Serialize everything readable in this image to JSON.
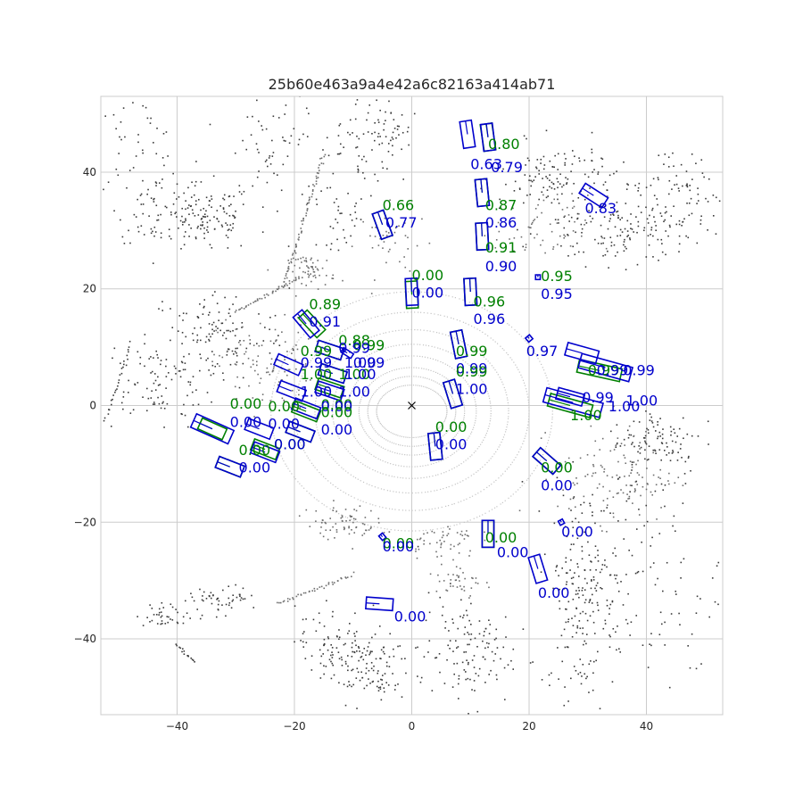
{
  "chart_data": {
    "type": "scatter",
    "title": "25b60e463a9a4e42a6c82163a414ab71",
    "xlabel": "",
    "ylabel": "",
    "xlim": [
      -53,
      53
    ],
    "ylim": [
      -53,
      53
    ],
    "x_ticks": [
      -40,
      -20,
      0,
      20,
      40
    ],
    "y_ticks": [
      -40,
      -20,
      0,
      20,
      40
    ],
    "grid": true,
    "legend": "none",
    "colors": {
      "points_dark": "#3a3a3a",
      "points_light": "#c4c4c4",
      "ground_truth": "#008000",
      "prediction": "#0000cc",
      "grid": "#cccccc",
      "ego": "#000000"
    },
    "ego": {
      "x": 0,
      "y": 0,
      "marker": "x"
    },
    "ground_truth_boxes": [
      {
        "x": -17,
        "y": 14,
        "w": 2,
        "l": 4.6,
        "yaw": 0.75,
        "score": "0.89"
      },
      {
        "x": -5,
        "y": 31,
        "w": 2,
        "l": 4.6,
        "yaw": 0.35,
        "score": "0.66"
      },
      {
        "x": 13,
        "y": 46,
        "w": 2,
        "l": 4.6,
        "yaw": 0.15,
        "score": "0.80"
      },
      {
        "x": 12,
        "y": 36.5,
        "w": 2,
        "l": 4.6,
        "yaw": 0.1,
        "score": "0.87"
      },
      {
        "x": 12,
        "y": 29,
        "w": 2,
        "l": 4.6,
        "yaw": 0.05,
        "score": "0.91"
      },
      {
        "x": 0,
        "y": 19,
        "w": 2,
        "l": 4.6,
        "yaw": 0.05,
        "score": "0.00"
      },
      {
        "x": 10,
        "y": 19.5,
        "w": 2,
        "l": 4.6,
        "yaw": 0.05,
        "score": "0.96"
      },
      {
        "x": 8,
        "y": 10.5,
        "w": 2,
        "l": 4.6,
        "yaw": 0.2,
        "score": "0.99"
      },
      {
        "x": 7,
        "y": 2,
        "w": 2,
        "l": 4.6,
        "yaw": 0.3,
        "score": "0.99"
      },
      {
        "x": -14,
        "y": 9.5,
        "w": 2,
        "l": 4.6,
        "yaw": 1.25,
        "score": "0.88"
      },
      {
        "x": -13.5,
        "y": 5.5,
        "w": 2,
        "l": 4.6,
        "yaw": 1.25,
        "score": "0.99"
      },
      {
        "x": -14,
        "y": 3,
        "w": 2,
        "l": 4.6,
        "yaw": 1.25,
        "score": "1.00"
      },
      {
        "x": -18,
        "y": -1,
        "w": 2,
        "l": 4.6,
        "yaw": 1.2,
        "score": "0.00"
      },
      {
        "x": -19,
        "y": -4.5,
        "w": 2,
        "l": 4.6,
        "yaw": 1.2,
        "score": "0.00"
      },
      {
        "x": -25,
        "y": -7.5,
        "w": 2,
        "l": 4.6,
        "yaw": 1.2,
        "score": "0.00"
      },
      {
        "x": -34,
        "y": -4,
        "w": 2,
        "l": 4.6,
        "yaw": 1.15,
        "score": "0.00"
      },
      {
        "x": -31,
        "y": -10.5,
        "w": 2,
        "l": 4.6,
        "yaw": 1.2,
        "score": "0.00"
      },
      {
        "x": 4,
        "y": -7,
        "w": 2,
        "l": 4.6,
        "yaw": 0.1,
        "score": "0.00"
      },
      {
        "x": 23,
        "y": -9.5,
        "w": 2,
        "l": 4.6,
        "yaw": 0.85,
        "score": "0.00"
      },
      {
        "x": 13,
        "y": -22,
        "w": 2,
        "l": 4.6,
        "yaw": 0.0,
        "score": "0.00"
      },
      {
        "x": 32,
        "y": 6,
        "w": 2.2,
        "l": 7.5,
        "yaw": 1.35,
        "score": "0.99"
      },
      {
        "x": 27,
        "y": 0,
        "w": 2.2,
        "l": 7.5,
        "yaw": 1.3,
        "score": "1.00"
      }
    ],
    "prediction_boxes": [
      {
        "x": -18,
        "y": 14,
        "w": 2,
        "l": 4.6,
        "yaw": 0.7,
        "score": "0.91"
      },
      {
        "x": -5,
        "y": 31,
        "w": 2,
        "l": 4.6,
        "yaw": 0.35,
        "score": "0.77"
      },
      {
        "x": 9.5,
        "y": 46.5,
        "w": 2,
        "l": 4.6,
        "yaw": 0.15,
        "score": "0.63"
      },
      {
        "x": 13,
        "y": 46,
        "w": 2,
        "l": 4.6,
        "yaw": 0.12,
        "score": "0.79"
      },
      {
        "x": 31,
        "y": 36,
        "w": 2,
        "l": 4.6,
        "yaw": 1.0,
        "score": "0.83"
      },
      {
        "x": 12,
        "y": 36.5,
        "w": 2,
        "l": 4.6,
        "yaw": 0.1,
        "score": "0.86"
      },
      {
        "x": 12,
        "y": 29,
        "w": 2,
        "l": 4.6,
        "yaw": 0.05,
        "score": "0.90"
      },
      {
        "x": 21.5,
        "y": 22,
        "w": 0.8,
        "l": 0.8,
        "yaw": 0.0,
        "score": "0.95"
      },
      {
        "x": 0,
        "y": 19.5,
        "w": 2,
        "l": 4.6,
        "yaw": 0.05,
        "score": "0.00"
      },
      {
        "x": 10,
        "y": 19.5,
        "w": 2,
        "l": 4.6,
        "yaw": 0.05,
        "score": "0.96"
      },
      {
        "x": 20,
        "y": 11.5,
        "w": 0.9,
        "l": 0.9,
        "yaw": 0.7,
        "score": "0.97"
      },
      {
        "x": 8,
        "y": 10.5,
        "w": 2,
        "l": 4.6,
        "yaw": 0.2,
        "score": "0.99"
      },
      {
        "x": 7,
        "y": 2,
        "w": 2,
        "l": 4.6,
        "yaw": 0.3,
        "score": "1.00"
      },
      {
        "x": -11,
        "y": 9,
        "w": 0.9,
        "l": 2,
        "yaw": 1.0,
        "score": "0.99"
      },
      {
        "x": -14,
        "y": 9.5,
        "w": 2,
        "l": 4.6,
        "yaw": 1.25,
        "score": "0.99"
      },
      {
        "x": -21,
        "y": 7,
        "w": 2,
        "l": 4.6,
        "yaw": 1.15,
        "score": "0.99"
      },
      {
        "x": -13.5,
        "y": 5.5,
        "w": 2,
        "l": 4.6,
        "yaw": 1.25,
        "score": "1.00"
      },
      {
        "x": -20.5,
        "y": 2.5,
        "w": 2,
        "l": 4.6,
        "yaw": 1.2,
        "score": "1.00"
      },
      {
        "x": -14,
        "y": 2.5,
        "w": 2,
        "l": 4.6,
        "yaw": 1.25,
        "score": "1.00"
      },
      {
        "x": -18,
        "y": -0.5,
        "w": 2,
        "l": 4.6,
        "yaw": 1.2,
        "score": "0.00"
      },
      {
        "x": -19,
        "y": -4.5,
        "w": 2,
        "l": 4.6,
        "yaw": 1.2,
        "score": "0.00"
      },
      {
        "x": -26,
        "y": -4,
        "w": 2,
        "l": 4.6,
        "yaw": 1.2,
        "score": "0.00"
      },
      {
        "x": -25,
        "y": -8,
        "w": 2,
        "l": 4.6,
        "yaw": 1.2,
        "score": "0.00"
      },
      {
        "x": -34,
        "y": -4,
        "w": 2.5,
        "l": 7,
        "yaw": 1.15,
        "score": "0.00"
      },
      {
        "x": -31,
        "y": -10.5,
        "w": 2,
        "l": 4.6,
        "yaw": 1.2,
        "score": "0.00"
      },
      {
        "x": 4,
        "y": -7,
        "w": 2,
        "l": 4.6,
        "yaw": 0.1,
        "score": "0.00"
      },
      {
        "x": 23,
        "y": -9.5,
        "w": 2,
        "l": 4.6,
        "yaw": 0.85,
        "score": "0.00"
      },
      {
        "x": 25.5,
        "y": -20,
        "w": 0.8,
        "l": 0.8,
        "yaw": 0.5,
        "score": "0.00"
      },
      {
        "x": 13,
        "y": -22,
        "w": 2,
        "l": 4.6,
        "yaw": 0.0,
        "score": "0.00"
      },
      {
        "x": -5,
        "y": -22.5,
        "w": 0.8,
        "l": 1,
        "yaw": 0.7,
        "score": "0.00"
      },
      {
        "x": 21.5,
        "y": -28,
        "w": 2,
        "l": 4.6,
        "yaw": 0.3,
        "score": "0.00"
      },
      {
        "x": -5.5,
        "y": -34,
        "w": 2,
        "l": 4.6,
        "yaw": 1.5,
        "score": "0.00"
      },
      {
        "x": 29,
        "y": 9,
        "w": 2.2,
        "l": 5.5,
        "yaw": 1.3,
        "score": "0.99"
      },
      {
        "x": 33,
        "y": 6.5,
        "w": 2.5,
        "l": 9,
        "yaw": 1.3,
        "score": "0.99"
      },
      {
        "x": 27,
        "y": 1.5,
        "w": 2,
        "l": 4.6,
        "yaw": 1.3,
        "score": "0.99"
      },
      {
        "x": 27.5,
        "y": 0.5,
        "w": 2.5,
        "l": 10,
        "yaw": 1.3,
        "score": "1.00"
      }
    ],
    "score_labels": [
      {
        "x": -17.5,
        "y": 16.5,
        "text": "0.89",
        "kind": "gt"
      },
      {
        "x": -17.5,
        "y": 13.5,
        "text": "0.91",
        "kind": "pred"
      },
      {
        "x": -5,
        "y": 33.5,
        "text": "0.66",
        "kind": "gt"
      },
      {
        "x": -4.5,
        "y": 30.5,
        "text": "0.77",
        "kind": "pred"
      },
      {
        "x": 13,
        "y": 44,
        "text": "0.80",
        "kind": "gt"
      },
      {
        "x": 10,
        "y": 40.5,
        "text": "0.63",
        "kind": "pred"
      },
      {
        "x": 13.5,
        "y": 40,
        "text": "0.79",
        "kind": "pred"
      },
      {
        "x": 29.5,
        "y": 33,
        "text": "0.83",
        "kind": "pred"
      },
      {
        "x": 12.5,
        "y": 33.5,
        "text": "0.87",
        "kind": "gt"
      },
      {
        "x": 12.5,
        "y": 30.5,
        "text": "0.86",
        "kind": "pred"
      },
      {
        "x": 12.5,
        "y": 26.2,
        "text": "0.91",
        "kind": "gt"
      },
      {
        "x": 12.5,
        "y": 23,
        "text": "0.90",
        "kind": "pred"
      },
      {
        "x": 22,
        "y": 21.3,
        "text": "0.95",
        "kind": "gt"
      },
      {
        "x": 22,
        "y": 18.3,
        "text": "0.95",
        "kind": "pred"
      },
      {
        "x": 0,
        "y": 21.5,
        "text": "0.00",
        "kind": "gt"
      },
      {
        "x": 0,
        "y": 18.5,
        "text": "0.00",
        "kind": "pred"
      },
      {
        "x": 10.5,
        "y": 17,
        "text": "0.96",
        "kind": "gt"
      },
      {
        "x": 10.5,
        "y": 14,
        "text": "0.96",
        "kind": "pred"
      },
      {
        "x": 19.5,
        "y": 8.5,
        "text": "0.97",
        "kind": "pred"
      },
      {
        "x": 7.5,
        "y": 8.5,
        "text": "0.99",
        "kind": "gt"
      },
      {
        "x": 7.5,
        "y": 5.5,
        "text": "0.99",
        "kind": "pred"
      },
      {
        "x": 7.5,
        "y": 5,
        "text": "0.99",
        "kind": "gt"
      },
      {
        "x": 7.5,
        "y": 2,
        "text": "1.00",
        "kind": "pred"
      },
      {
        "x": -12.5,
        "y": 10.3,
        "text": "0.88",
        "kind": "gt"
      },
      {
        "x": -10,
        "y": 9.5,
        "text": "0.99",
        "kind": "gt"
      },
      {
        "x": -12.5,
        "y": 9,
        "text": "0.99",
        "kind": "pred"
      },
      {
        "x": -19,
        "y": 8.5,
        "text": "0.99",
        "kind": "gt"
      },
      {
        "x": -11.5,
        "y": 6.5,
        "text": "1.00",
        "kind": "pred"
      },
      {
        "x": -10,
        "y": 6.5,
        "text": "0.99",
        "kind": "pred"
      },
      {
        "x": -19,
        "y": 6.5,
        "text": "0.99",
        "kind": "pred"
      },
      {
        "x": -19,
        "y": 4.5,
        "text": "1.00",
        "kind": "gt"
      },
      {
        "x": -12.5,
        "y": 4.5,
        "text": "1.00",
        "kind": "gt"
      },
      {
        "x": -11.5,
        "y": 4.5,
        "text": "1.00",
        "kind": "pred"
      },
      {
        "x": -19,
        "y": 1.5,
        "text": "1.00",
        "kind": "pred"
      },
      {
        "x": -12.5,
        "y": 1.5,
        "text": "1.00",
        "kind": "pred"
      },
      {
        "x": -31,
        "y": -0.5,
        "text": "0.00",
        "kind": "gt"
      },
      {
        "x": -24.5,
        "y": -1,
        "text": "0.00",
        "kind": "gt"
      },
      {
        "x": -15.5,
        "y": -0.7,
        "text": "0.00",
        "kind": "gt"
      },
      {
        "x": -15.5,
        "y": -1,
        "text": "0.00",
        "kind": "pred"
      },
      {
        "x": -15.5,
        "y": -2,
        "text": "0.00",
        "kind": "gt"
      },
      {
        "x": -31,
        "y": -3.7,
        "text": "0.00",
        "kind": "pred"
      },
      {
        "x": -24.5,
        "y": -4,
        "text": "0.00",
        "kind": "pred"
      },
      {
        "x": -15.5,
        "y": -5,
        "text": "0.00",
        "kind": "pred"
      },
      {
        "x": -29.5,
        "y": -8.5,
        "text": "0.00",
        "kind": "gt"
      },
      {
        "x": -23.5,
        "y": -7.5,
        "text": "0.00",
        "kind": "gt"
      },
      {
        "x": -23.5,
        "y": -7.5,
        "text": "0.00",
        "kind": "pred"
      },
      {
        "x": -29.5,
        "y": -11.5,
        "text": "0.00",
        "kind": "pred"
      },
      {
        "x": 4,
        "y": -4.5,
        "text": "0.00",
        "kind": "gt"
      },
      {
        "x": 4,
        "y": -7.5,
        "text": "0.00",
        "kind": "pred"
      },
      {
        "x": 22,
        "y": -11.5,
        "text": "0.00",
        "kind": "gt"
      },
      {
        "x": 22,
        "y": -14.5,
        "text": "0.00",
        "kind": "pred"
      },
      {
        "x": 25.5,
        "y": -22.5,
        "text": "0.00",
        "kind": "pred"
      },
      {
        "x": 12.5,
        "y": -23.5,
        "text": "0.00",
        "kind": "gt"
      },
      {
        "x": 14.5,
        "y": -26,
        "text": "0.00",
        "kind": "pred"
      },
      {
        "x": -5,
        "y": -24.5,
        "text": "0.00",
        "kind": "gt"
      },
      {
        "x": -5,
        "y": -25,
        "text": "0.00",
        "kind": "pred"
      },
      {
        "x": 21.5,
        "y": -33,
        "text": "0.00",
        "kind": "pred"
      },
      {
        "x": -3,
        "y": -37,
        "text": "0.00",
        "kind": "pred"
      },
      {
        "x": 30,
        "y": 5.2,
        "text": "0.99",
        "kind": "gt"
      },
      {
        "x": 31.5,
        "y": 5.2,
        "text": "0.99",
        "kind": "pred"
      },
      {
        "x": 36,
        "y": 5.2,
        "text": "0.99",
        "kind": "pred"
      },
      {
        "x": 29,
        "y": 0.5,
        "text": "0.99",
        "kind": "pred"
      },
      {
        "x": 33.5,
        "y": -1,
        "text": "1.00",
        "kind": "pred"
      },
      {
        "x": 36.5,
        "y": 0,
        "text": "1.00",
        "kind": "pred"
      },
      {
        "x": 27,
        "y": -2.5,
        "text": "1.00",
        "kind": "gt"
      }
    ],
    "point_clusters": [
      {
        "cx": -35,
        "cy": 32,
        "sx": 4,
        "sy": 3,
        "n": 130,
        "shade": "dark"
      },
      {
        "cx": -44,
        "cy": 34,
        "sx": 3,
        "sy": 3,
        "n": 50,
        "shade": "dark"
      },
      {
        "cx": -47,
        "cy": 45,
        "sx": 4,
        "sy": 4,
        "n": 40,
        "shade": "dark"
      },
      {
        "cx": -33,
        "cy": 12,
        "sx": 6,
        "sy": 4,
        "n": 120,
        "shade": "dark"
      },
      {
        "cx": -44,
        "cy": 4,
        "sx": 5,
        "sy": 4,
        "n": 100,
        "shade": "dark"
      },
      {
        "cx": -25,
        "cy": 7,
        "sx": 4,
        "sy": 4,
        "n": 100,
        "shade": "mid"
      },
      {
        "cx": -23,
        "cy": 43,
        "sx": 4,
        "sy": 6,
        "n": 60,
        "shade": "dark"
      },
      {
        "cx": -10,
        "cy": 44,
        "sx": 4,
        "sy": 5,
        "n": 60,
        "shade": "dark"
      },
      {
        "cx": -4,
        "cy": 47,
        "sx": 2,
        "sy": 2,
        "n": 40,
        "shade": "dark"
      },
      {
        "cx": -17,
        "cy": 23,
        "sx": 2,
        "sy": 1.5,
        "n": 60,
        "shade": "mid"
      },
      {
        "cx": -12,
        "cy": 31,
        "sx": 2,
        "sy": 2,
        "n": 25,
        "shade": "dark"
      },
      {
        "cx": -3,
        "cy": 28,
        "sx": 3,
        "sy": 3,
        "n": 40,
        "shade": "mid"
      },
      {
        "cx": 25,
        "cy": 39,
        "sx": 5,
        "sy": 3,
        "n": 120,
        "shade": "dark"
      },
      {
        "cx": 36,
        "cy": 30,
        "sx": 7,
        "sy": 3,
        "n": 150,
        "shade": "dark"
      },
      {
        "cx": 45,
        "cy": 37,
        "sx": 5,
        "sy": 4,
        "n": 80,
        "shade": "dark"
      },
      {
        "cx": 22,
        "cy": 30,
        "sx": 4,
        "sy": 3,
        "n": 60,
        "shade": "mid"
      },
      {
        "cx": 35,
        "cy": -12,
        "sx": 5,
        "sy": 4,
        "n": 120,
        "shade": "mid"
      },
      {
        "cx": 42,
        "cy": -6,
        "sx": 4,
        "sy": 3,
        "n": 100,
        "shade": "dark"
      },
      {
        "cx": 29,
        "cy": -32,
        "sx": 3,
        "sy": 9,
        "n": 200,
        "shade": "dark"
      },
      {
        "cx": 41,
        "cy": -30,
        "sx": 6,
        "sy": 10,
        "n": 100,
        "shade": "dark"
      },
      {
        "cx": 9,
        "cy": -42,
        "sx": 4,
        "sy": 5,
        "n": 130,
        "shade": "dark"
      },
      {
        "cx": -8,
        "cy": -45,
        "sx": 4,
        "sy": 3,
        "n": 120,
        "shade": "dark"
      },
      {
        "cx": -14,
        "cy": -40,
        "sx": 3,
        "sy": 3,
        "n": 60,
        "shade": "dark"
      },
      {
        "cx": -32,
        "cy": -33,
        "sx": 3,
        "sy": 1,
        "n": 50,
        "shade": "dark"
      },
      {
        "cx": -41,
        "cy": -36,
        "sx": 3,
        "sy": 1,
        "n": 40,
        "shade": "dark"
      },
      {
        "cx": -12,
        "cy": -20,
        "sx": 3,
        "sy": 1.5,
        "n": 70,
        "shade": "mid"
      },
      {
        "cx": 5,
        "cy": -23,
        "sx": 3,
        "sy": 1.5,
        "n": 50,
        "shade": "mid"
      },
      {
        "cx": 8,
        "cy": -30,
        "sx": 2,
        "sy": 2,
        "n": 40,
        "shade": "mid"
      }
    ],
    "point_lines": [
      {
        "x1": -22,
        "y1": 20,
        "x2": -15,
        "y2": 43,
        "n": 70,
        "shade": "mid"
      },
      {
        "x1": -30,
        "y1": 16,
        "x2": -19,
        "y2": 22,
        "n": 40,
        "shade": "mid"
      },
      {
        "x1": -23,
        "y1": -34,
        "x2": -10,
        "y2": -29,
        "n": 40,
        "shade": "mid"
      },
      {
        "x1": -40,
        "y1": -41,
        "x2": -37,
        "y2": -44,
        "n": 15,
        "shade": "dark"
      },
      {
        "x1": -52,
        "y1": -2,
        "x2": -48,
        "y2": 10,
        "n": 25,
        "shade": "dark"
      }
    ],
    "rings": [
      {
        "rx": 6,
        "ry": 4.5
      },
      {
        "rx": 7.5,
        "ry": 6
      },
      {
        "rx": 9,
        "ry": 7.5
      },
      {
        "rx": 11,
        "ry": 9.5
      },
      {
        "rx": 13.5,
        "ry": 11.5
      },
      {
        "rx": 16.5,
        "ry": 14
      },
      {
        "rx": 20,
        "ry": 17
      },
      {
        "rx": 24,
        "ry": 20.5
      }
    ]
  }
}
